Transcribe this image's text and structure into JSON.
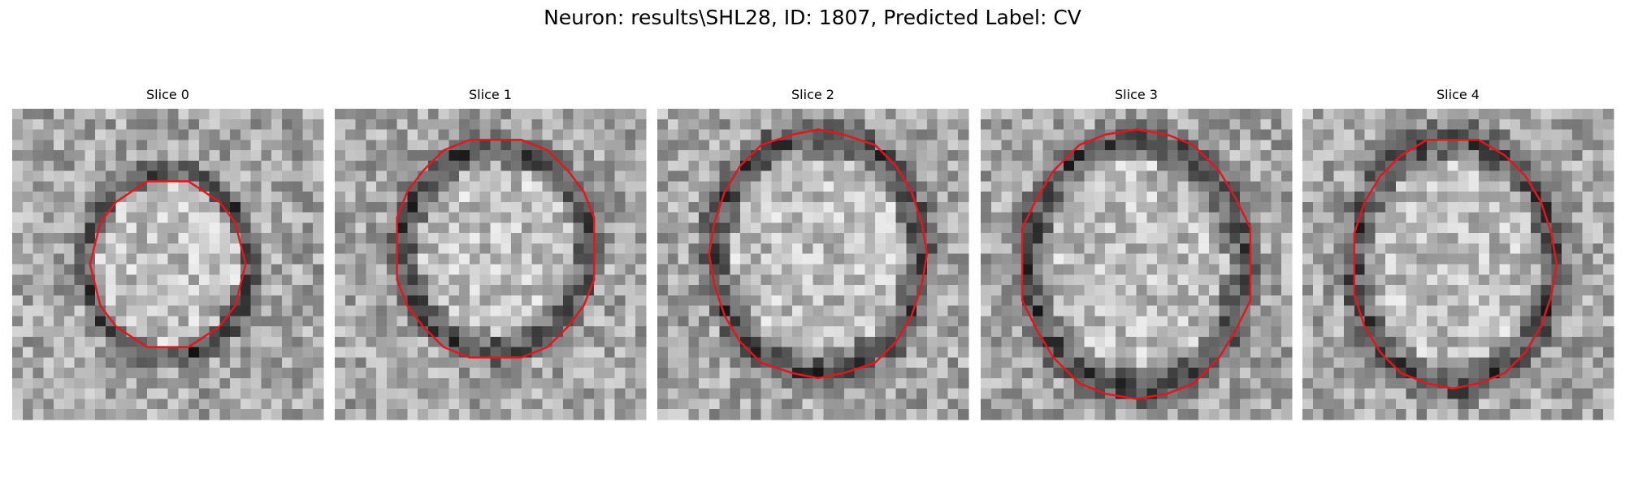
{
  "title": "Neuron: results\\SHL28, ID: 1807, Predicted Label: CV",
  "panels": [
    {
      "title": "Slice 0"
    },
    {
      "title": "Slice 1"
    },
    {
      "title": "Slice 2"
    },
    {
      "title": "Slice 3"
    },
    {
      "title": "Slice 4"
    }
  ]
}
